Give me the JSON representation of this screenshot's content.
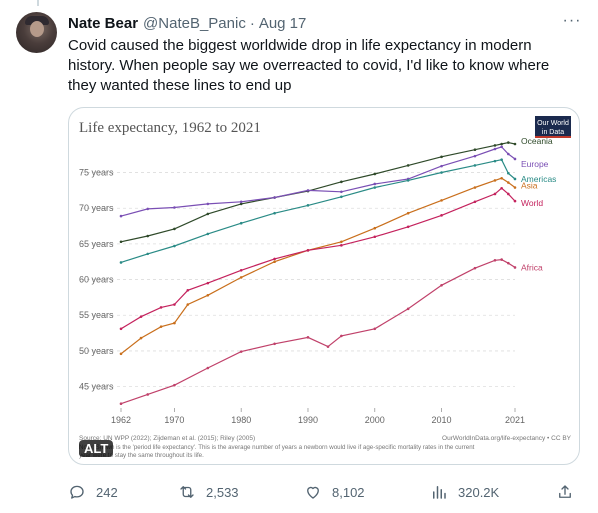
{
  "tweet": {
    "author_name": "Nate Bear",
    "handle": "@NateB_Panic",
    "separator": "·",
    "date": "Aug 17",
    "more_label": "···",
    "text": "Covid caused the biggest worldwide drop in life expectancy in modern history. When people say we overreacted to covid, I'd like to know where they wanted these lines to end up",
    "alt_label": "ALT",
    "actions": {
      "replies": "242",
      "retweets": "2,533",
      "likes": "8,102",
      "views": "320.2K"
    }
  },
  "colors": {
    "oceania": "#2f4a2a",
    "europe": "#7a4fb4",
    "americas": "#2a8b86",
    "asia": "#c96f1c",
    "world": "#c4225d",
    "africa": "#c0416a"
  },
  "chart_data": {
    "type": "line",
    "title": "Life expectancy, 1962 to 2021",
    "badge": "Our World\nin Data",
    "xlabel": "",
    "ylabel": "",
    "xlim": [
      1962,
      2021
    ],
    "ylim": [
      42,
      79
    ],
    "x_ticks": [
      "1962",
      "1970",
      "1980",
      "1990",
      "2000",
      "2010",
      "2021"
    ],
    "y_ticks": [
      "45 years",
      "50 years",
      "55 years",
      "60 years",
      "65 years",
      "70 years",
      "75 years"
    ],
    "source": "Source: UN WPP (2022); Zijdeman et al. (2015); Riley (2005)",
    "note": "Note: Shown is the 'period life expectancy'. This is the average number of years a newborn would live if age-specific mortality rates in the current year were to stay the same throughout its life.",
    "credit": "OurWorldInData.org/life-expectancy • CC BY",
    "series": [
      {
        "name": "Oceania",
        "key": "oceania",
        "x": [
          1962,
          1966,
          1970,
          1975,
          1980,
          1985,
          1990,
          1995,
          2000,
          2005,
          2010,
          2015,
          2018,
          2019,
          2020,
          2021
        ],
        "values": [
          65.3,
          66.1,
          67.1,
          69.2,
          70.6,
          71.5,
          72.4,
          73.7,
          74.8,
          76.0,
          77.2,
          78.2,
          78.8,
          79.0,
          79.2,
          79.0
        ]
      },
      {
        "name": "Europe",
        "key": "europe",
        "x": [
          1962,
          1966,
          1970,
          1975,
          1980,
          1985,
          1990,
          1995,
          2000,
          2005,
          2010,
          2015,
          2018,
          2019,
          2020,
          2021
        ],
        "values": [
          68.9,
          69.9,
          70.1,
          70.6,
          70.9,
          71.5,
          72.5,
          72.3,
          73.4,
          74.1,
          75.9,
          77.3,
          78.3,
          78.6,
          77.6,
          76.9
        ]
      },
      {
        "name": "Americas",
        "key": "americas",
        "x": [
          1962,
          1966,
          1970,
          1975,
          1980,
          1985,
          1990,
          1995,
          2000,
          2005,
          2010,
          2015,
          2018,
          2019,
          2020,
          2021
        ],
        "values": [
          62.4,
          63.6,
          64.7,
          66.4,
          67.9,
          69.3,
          70.4,
          71.6,
          72.9,
          73.9,
          75.0,
          76.0,
          76.6,
          76.8,
          74.9,
          74.1
        ]
      },
      {
        "name": "Asia",
        "key": "asia",
        "x": [
          1962,
          1965,
          1968,
          1970,
          1972,
          1975,
          1980,
          1985,
          1990,
          1995,
          2000,
          2005,
          2010,
          2015,
          2018,
          2019,
          2020,
          2021
        ],
        "values": [
          49.6,
          51.8,
          53.4,
          53.9,
          56.5,
          57.8,
          60.3,
          62.5,
          64.1,
          65.3,
          67.2,
          69.3,
          71.1,
          72.9,
          73.9,
          74.2,
          73.6,
          72.9
        ]
      },
      {
        "name": "World",
        "key": "world",
        "x": [
          1962,
          1965,
          1968,
          1970,
          1972,
          1975,
          1980,
          1985,
          1990,
          1995,
          2000,
          2005,
          2010,
          2015,
          2018,
          2019,
          2020,
          2021
        ],
        "values": [
          53.1,
          54.8,
          56.1,
          56.5,
          58.5,
          59.5,
          61.3,
          62.9,
          64.1,
          64.8,
          66.0,
          67.4,
          69.0,
          70.9,
          72.0,
          72.8,
          72.0,
          71.0
        ]
      },
      {
        "name": "Africa",
        "key": "africa",
        "x": [
          1962,
          1966,
          1970,
          1975,
          1980,
          1985,
          1990,
          1993,
          1995,
          2000,
          2005,
          2010,
          2015,
          2018,
          2019,
          2020,
          2021
        ],
        "values": [
          42.6,
          43.9,
          45.2,
          47.6,
          49.9,
          51.0,
          51.9,
          50.6,
          52.1,
          53.1,
          55.9,
          59.2,
          61.6,
          62.7,
          62.8,
          62.3,
          61.7
        ]
      }
    ]
  }
}
